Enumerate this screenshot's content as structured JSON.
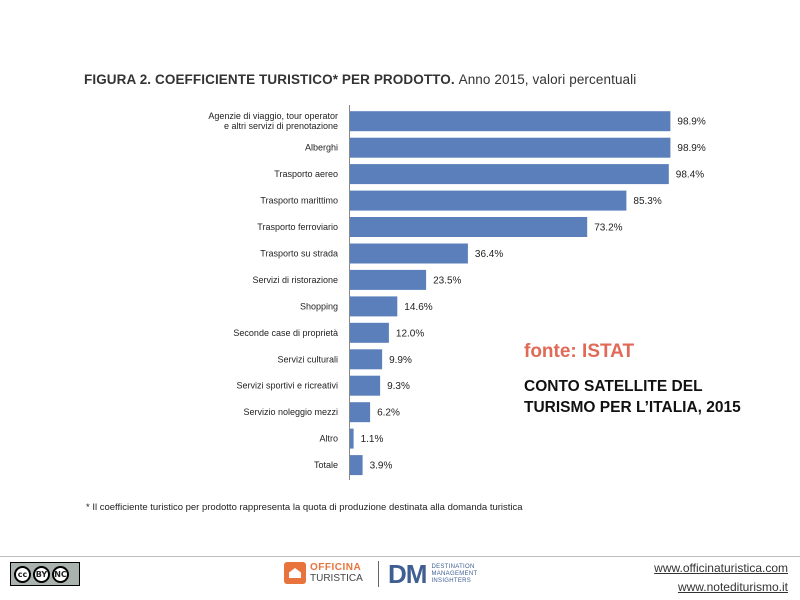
{
  "chart_data": {
    "type": "bar",
    "orientation": "horizontal",
    "title": "FIGURA 2. COEFFICIENTE TURISTICO* PER PRODOTTO.",
    "subtitle": "Anno 2015, valori percentuali",
    "categories": [
      [
        "Agenzie di viaggio, tour operator",
        "e altri servizi di prenotazione"
      ],
      [
        "Alberghi"
      ],
      [
        "Trasporto aereo"
      ],
      [
        "Trasporto marittimo"
      ],
      [
        "Trasporto ferroviario"
      ],
      [
        "Trasporto su strada"
      ],
      [
        "Servizi di ristorazione"
      ],
      [
        "Shopping"
      ],
      [
        "Seconde case di proprietà"
      ],
      [
        "Servizi culturali"
      ],
      [
        "Servizi sportivi e ricreativi"
      ],
      [
        "Servizio noleggio mezzi"
      ],
      [
        "Altro"
      ],
      [
        "Totale"
      ]
    ],
    "values": [
      98.9,
      98.9,
      98.4,
      85.3,
      73.2,
      36.4,
      23.5,
      14.6,
      12.0,
      9.9,
      9.3,
      6.2,
      1.1,
      3.9
    ],
    "value_labels": [
      "98.9%",
      "98.9%",
      "98.4%",
      "85.3%",
      "73.2%",
      "36.4%",
      "23.5%",
      "14.6%",
      "12.0%",
      "9.9%",
      "9.3%",
      "6.2%",
      "1.1%",
      "3.9%"
    ],
    "xlim": [
      0,
      100
    ],
    "bar_color": "#5b7fba",
    "grid": false,
    "legend": "none"
  },
  "source": {
    "label": "fonte: ISTAT",
    "label_color": "#e06a57",
    "lines": [
      "CONTO SATELLITE DEL",
      "TURISMO PER L’ITALIA, 2015"
    ]
  },
  "footnote": "* Il coefficiente turistico per prodotto rappresenta la quota di produzione destinata alla domanda turistica",
  "footer": {
    "license_icons": [
      "cc-icon",
      "by-icon",
      "nc-icon"
    ],
    "license_text": {
      "cc": "cc",
      "by": "BY",
      "nc": "NC"
    },
    "logo_officina": {
      "line1": "OFFICINA",
      "line2": "TURISTICA"
    },
    "logo_dm": {
      "mark": "DM",
      "lines": [
        "DESTINATION",
        "MANAGEMENT",
        "INSIGHTERS"
      ]
    },
    "links": [
      "www.officinaturistica.com",
      "www.notediturismo.it"
    ]
  }
}
